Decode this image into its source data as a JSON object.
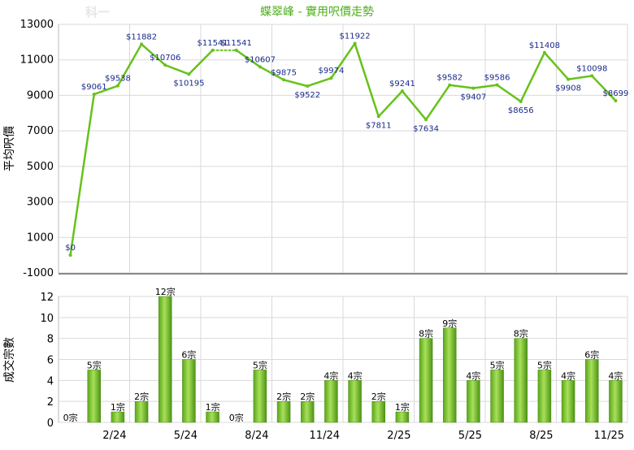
{
  "chart_data": [
    {
      "type": "line",
      "title": "蝶翠峰 - 實用呎價走勢",
      "ylabel": "平均呎價",
      "ylim": [
        -1000,
        13000
      ],
      "yticks": [
        -1000,
        1000,
        3000,
        5000,
        7000,
        9000,
        11000,
        13000
      ],
      "grid": true,
      "line_color": "#66c21a",
      "points": [
        {
          "x": 1,
          "y": 0,
          "label": "$0"
        },
        {
          "x": 2,
          "y": 9061,
          "label": "$9061"
        },
        {
          "x": 3,
          "y": 9538,
          "label": "$9538"
        },
        {
          "x": 4,
          "y": 11882,
          "label": "$11882"
        },
        {
          "x": 5,
          "y": 10706,
          "label": "$10706"
        },
        {
          "x": 6,
          "y": 10195,
          "label": "$10195"
        },
        {
          "x": 7,
          "y": 11541,
          "label": "$11541"
        },
        {
          "x": 8,
          "y": 11541,
          "label": "$11541",
          "dotted_from_previous": true
        },
        {
          "x": 9,
          "y": 10607,
          "label": "$10607"
        },
        {
          "x": 10,
          "y": 9875,
          "label": "$9875"
        },
        {
          "x": 11,
          "y": 9522,
          "label": "$9522"
        },
        {
          "x": 12,
          "y": 9974,
          "label": "$9974"
        },
        {
          "x": 13,
          "y": 11922,
          "label": "$11922"
        },
        {
          "x": 14,
          "y": 7811,
          "label": "$7811"
        },
        {
          "x": 15,
          "y": 9241,
          "label": "$9241"
        },
        {
          "x": 16,
          "y": 7634,
          "label": "$7634"
        },
        {
          "x": 17,
          "y": 9582,
          "label": "$9582"
        },
        {
          "x": 18,
          "y": 9407,
          "label": "$9407"
        },
        {
          "x": 19,
          "y": 9586,
          "label": "$9586"
        },
        {
          "x": 20,
          "y": 8656,
          "label": "$8656"
        },
        {
          "x": 21,
          "y": 11408,
          "label": "$11408"
        },
        {
          "x": 22,
          "y": 9908,
          "label": "$9908"
        },
        {
          "x": 23,
          "y": 10098,
          "label": "$10098"
        },
        {
          "x": 24,
          "y": 8699,
          "label": "$8699"
        }
      ]
    },
    {
      "type": "bar",
      "ylabel": "成交宗數",
      "ylim": [
        0,
        12
      ],
      "yticks": [
        0,
        2,
        4,
        6,
        8,
        10,
        12
      ],
      "grid": true,
      "bar_color": "#7cc22a",
      "x_tick_labels": [
        {
          "x": 3,
          "label": "2/24"
        },
        {
          "x": 6,
          "label": "5/24"
        },
        {
          "x": 9,
          "label": "8/24"
        },
        {
          "x": 12,
          "label": "11/24"
        },
        {
          "x": 15,
          "label": "2/25"
        },
        {
          "x": 18,
          "label": "5/25"
        },
        {
          "x": 21,
          "label": "8/25"
        },
        {
          "x": 24,
          "label": "11/25"
        }
      ],
      "bars": [
        {
          "x": 1,
          "value": 0,
          "label": "0宗"
        },
        {
          "x": 2,
          "value": 5,
          "label": "5宗"
        },
        {
          "x": 3,
          "value": 1,
          "label": "1宗"
        },
        {
          "x": 4,
          "value": 2,
          "label": "2宗"
        },
        {
          "x": 5,
          "value": 12,
          "label": "12宗"
        },
        {
          "x": 6,
          "value": 6,
          "label": "6宗"
        },
        {
          "x": 7,
          "value": 1,
          "label": "1宗"
        },
        {
          "x": 8,
          "value": 0,
          "label": "0宗"
        },
        {
          "x": 9,
          "value": 5,
          "label": "5宗"
        },
        {
          "x": 10,
          "value": 2,
          "label": "2宗"
        },
        {
          "x": 11,
          "value": 2,
          "label": "2宗"
        },
        {
          "x": 12,
          "value": 4,
          "label": "4宗"
        },
        {
          "x": 13,
          "value": 4,
          "label": "4宗"
        },
        {
          "x": 14,
          "value": 2,
          "label": "2宗"
        },
        {
          "x": 15,
          "value": 1,
          "label": "1宗"
        },
        {
          "x": 16,
          "value": 8,
          "label": "8宗"
        },
        {
          "x": 17,
          "value": 9,
          "label": "9宗"
        },
        {
          "x": 18,
          "value": 4,
          "label": "4宗"
        },
        {
          "x": 19,
          "value": 5,
          "label": "5宗"
        },
        {
          "x": 20,
          "value": 8,
          "label": "8宗"
        },
        {
          "x": 21,
          "value": 5,
          "label": "5宗"
        },
        {
          "x": 22,
          "value": 4,
          "label": "4宗"
        },
        {
          "x": 23,
          "value": 6,
          "label": "6宗"
        },
        {
          "x": 24,
          "value": 4,
          "label": "4宗"
        }
      ]
    }
  ],
  "watermark": "科一"
}
